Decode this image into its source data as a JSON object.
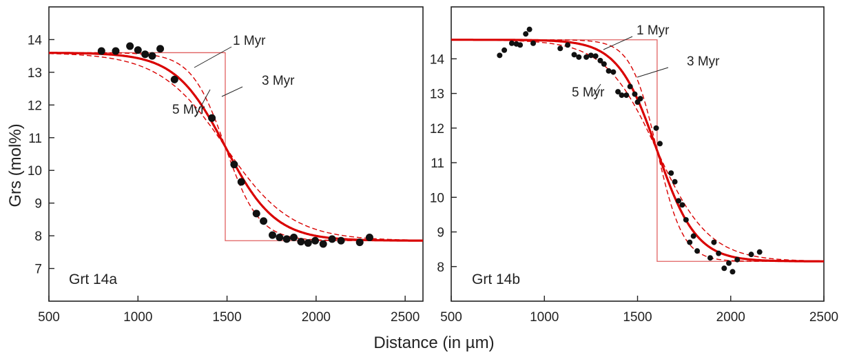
{
  "figure": {
    "xlabel": "Distance (in µm)",
    "ylabel": "Grs (mol%)"
  },
  "colors": {
    "model_curve": "#d90000",
    "step_profile": "#e06060",
    "data_points": "#111111",
    "axis": "#222222"
  },
  "chart_data": [
    {
      "type": "scatter",
      "panel_label": "Grt 14a",
      "xlim": [
        500,
        2600
      ],
      "ylim": [
        6,
        15
      ],
      "xticks": [
        500,
        1000,
        1500,
        2000,
        2500
      ],
      "yticks": [
        7,
        8,
        9,
        10,
        11,
        12,
        13,
        14
      ],
      "step_profile": {
        "x_step": 1490,
        "y_high": 13.6,
        "y_low": 7.85
      },
      "model_curves": [
        {
          "name": "1 Myr",
          "style": "dashed",
          "width": 185
        },
        {
          "name": "3 Myr",
          "style": "solid",
          "width": 140
        },
        {
          "name": "5 Myr",
          "style": "dashed",
          "width": 95
        }
      ],
      "model_params": {
        "center": 1490,
        "high": 13.6,
        "low": 7.85
      },
      "points": [
        [
          795,
          13.65
        ],
        [
          875,
          13.65
        ],
        [
          955,
          13.8
        ],
        [
          1000,
          13.68
        ],
        [
          1040,
          13.55
        ],
        [
          1080,
          13.5
        ],
        [
          1125,
          13.72
        ],
        [
          1205,
          12.78
        ],
        [
          1415,
          11.6
        ],
        [
          1540,
          10.18
        ],
        [
          1580,
          9.65
        ],
        [
          1665,
          8.68
        ],
        [
          1705,
          8.45
        ],
        [
          1755,
          8.02
        ],
        [
          1795,
          7.95
        ],
        [
          1835,
          7.9
        ],
        [
          1875,
          7.95
        ],
        [
          1915,
          7.82
        ],
        [
          1955,
          7.78
        ],
        [
          1995,
          7.85
        ],
        [
          2040,
          7.75
        ],
        [
          2090,
          7.9
        ],
        [
          2140,
          7.85
        ],
        [
          2245,
          7.8
        ],
        [
          2300,
          7.95
        ]
      ],
      "annotations": [
        "1 Myr",
        "3 Myr",
        "5 Myr"
      ]
    },
    {
      "type": "scatter",
      "panel_label": "Grt 14b",
      "xlim": [
        500,
        2500
      ],
      "ylim": [
        7,
        15.5
      ],
      "xticks": [
        500,
        1000,
        1500,
        2000,
        2500
      ],
      "yticks": [
        8,
        9,
        10,
        11,
        12,
        13,
        14
      ],
      "step_profile": {
        "x_step": 1605,
        "y_high": 14.55,
        "y_low": 8.15
      },
      "model_curves": [
        {
          "name": "1 Myr",
          "style": "dashed",
          "width": 140
        },
        {
          "name": "3 Myr",
          "style": "solid",
          "width": 105
        },
        {
          "name": "5 Myr",
          "style": "dashed",
          "width": 70
        }
      ],
      "model_params": {
        "center": 1605,
        "high": 14.55,
        "low": 8.15
      },
      "points": [
        [
          760,
          14.1
        ],
        [
          785,
          14.25
        ],
        [
          825,
          14.45
        ],
        [
          850,
          14.43
        ],
        [
          870,
          14.4
        ],
        [
          900,
          14.72
        ],
        [
          920,
          14.85
        ],
        [
          940,
          14.45
        ],
        [
          1085,
          14.3
        ],
        [
          1125,
          14.4
        ],
        [
          1160,
          14.12
        ],
        [
          1185,
          14.05
        ],
        [
          1225,
          14.05
        ],
        [
          1250,
          14.1
        ],
        [
          1275,
          14.08
        ],
        [
          1300,
          13.95
        ],
        [
          1320,
          13.85
        ],
        [
          1345,
          13.65
        ],
        [
          1370,
          13.62
        ],
        [
          1395,
          13.05
        ],
        [
          1415,
          12.95
        ],
        [
          1440,
          12.95
        ],
        [
          1460,
          13.2
        ],
        [
          1485,
          12.98
        ],
        [
          1500,
          12.75
        ],
        [
          1515,
          12.85
        ],
        [
          1600,
          12.0
        ],
        [
          1620,
          11.55
        ],
        [
          1680,
          10.7
        ],
        [
          1700,
          10.45
        ],
        [
          1720,
          9.9
        ],
        [
          1740,
          9.78
        ],
        [
          1760,
          9.35
        ],
        [
          1780,
          8.7
        ],
        [
          1800,
          8.88
        ],
        [
          1820,
          8.45
        ],
        [
          1890,
          8.25
        ],
        [
          1910,
          8.7
        ],
        [
          1935,
          8.38
        ],
        [
          1965,
          7.95
        ],
        [
          1990,
          8.1
        ],
        [
          2010,
          7.85
        ],
        [
          2035,
          8.2
        ],
        [
          2110,
          8.35
        ],
        [
          2155,
          8.42
        ]
      ],
      "annotations": [
        "1 Myr",
        "3 Myr",
        "5 Myr"
      ]
    }
  ]
}
